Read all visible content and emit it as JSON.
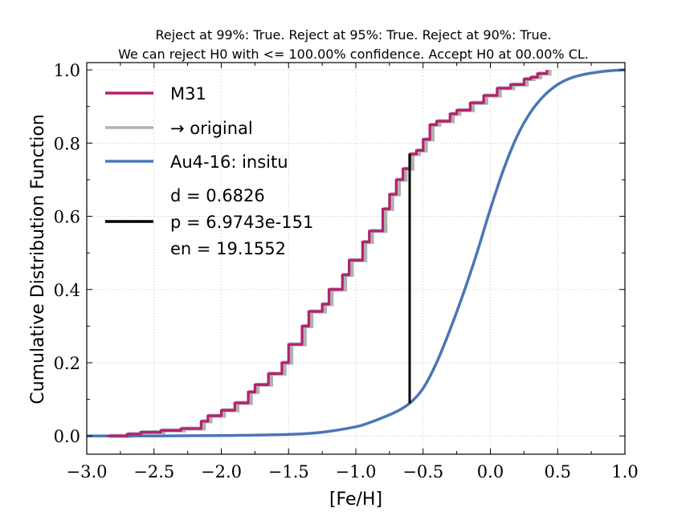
{
  "chart_data": {
    "type": "line",
    "title_lines": [
      "Reject at 99%: True. Reject at 95%: True. Reject at 90%: True.",
      "We can reject H0 with <= 100.00% confidence. Accept H0 at 00.00% CL."
    ],
    "xlabel": "[Fe/H]",
    "ylabel": "Cumulative Distribution Function",
    "xlim": [
      -3.0,
      1.0
    ],
    "ylim": [
      -0.05,
      1.02
    ],
    "xticks": [
      -3.0,
      -2.5,
      -2.0,
      -1.5,
      -1.0,
      -0.5,
      0.0,
      0.5,
      1.0
    ],
    "xtick_labels": [
      "−3.0",
      "−2.5",
      "−2.0",
      "−1.5",
      "−1.0",
      "−0.5",
      "0.0",
      "0.5",
      "1.0"
    ],
    "yticks": [
      0.0,
      0.2,
      0.4,
      0.6,
      0.8,
      1.0
    ],
    "ytick_labels": [
      "0.0",
      "0.2",
      "0.4",
      "0.6",
      "0.8",
      "1.0"
    ],
    "grid": true,
    "legend_position": "upper-left",
    "series": [
      {
        "name": "M31",
        "color": "#b5216f",
        "kind": "step",
        "x": [
          -2.85,
          -2.7,
          -2.6,
          -2.45,
          -2.3,
          -2.15,
          -2.1,
          -2.0,
          -1.9,
          -1.8,
          -1.75,
          -1.65,
          -1.55,
          -1.5,
          -1.4,
          -1.35,
          -1.25,
          -1.2,
          -1.1,
          -1.05,
          -0.95,
          -0.9,
          -0.8,
          -0.75,
          -0.7,
          -0.65,
          -0.6,
          -0.55,
          -0.5,
          -0.45,
          -0.4,
          -0.3,
          -0.25,
          -0.15,
          -0.05,
          0.05,
          0.15,
          0.25,
          0.3,
          0.35,
          0.42
        ],
        "y": [
          0.0,
          0.005,
          0.01,
          0.015,
          0.02,
          0.04,
          0.055,
          0.07,
          0.09,
          0.12,
          0.14,
          0.17,
          0.2,
          0.25,
          0.3,
          0.34,
          0.36,
          0.4,
          0.44,
          0.48,
          0.53,
          0.56,
          0.62,
          0.66,
          0.7,
          0.73,
          0.77,
          0.78,
          0.81,
          0.85,
          0.86,
          0.88,
          0.89,
          0.91,
          0.93,
          0.95,
          0.96,
          0.975,
          0.98,
          0.99,
          1.0
        ]
      },
      {
        "name": "→ original",
        "color": "#b0b0b0",
        "kind": "step",
        "x": [
          -2.85,
          -2.7,
          -2.6,
          -2.45,
          -2.3,
          -2.15,
          -2.1,
          -2.0,
          -1.9,
          -1.8,
          -1.75,
          -1.65,
          -1.55,
          -1.5,
          -1.4,
          -1.35,
          -1.25,
          -1.2,
          -1.1,
          -1.05,
          -0.95,
          -0.9,
          -0.8,
          -0.75,
          -0.7,
          -0.65,
          -0.6,
          -0.55,
          -0.5,
          -0.45,
          -0.4,
          -0.3,
          -0.25,
          -0.15,
          -0.05,
          0.05,
          0.15,
          0.25,
          0.3,
          0.35,
          0.42
        ],
        "y": [
          0.0,
          0.005,
          0.01,
          0.015,
          0.02,
          0.04,
          0.055,
          0.07,
          0.09,
          0.12,
          0.14,
          0.17,
          0.2,
          0.25,
          0.3,
          0.34,
          0.36,
          0.4,
          0.44,
          0.48,
          0.53,
          0.56,
          0.62,
          0.66,
          0.7,
          0.73,
          0.77,
          0.78,
          0.81,
          0.85,
          0.86,
          0.88,
          0.89,
          0.91,
          0.93,
          0.95,
          0.96,
          0.975,
          0.98,
          0.99,
          1.0
        ]
      },
      {
        "name": "Au4-16: insitu",
        "color": "#4a76b8",
        "kind": "line",
        "x": [
          -3.0,
          -2.5,
          -2.0,
          -1.5,
          -1.25,
          -1.0,
          -0.9,
          -0.8,
          -0.7,
          -0.6,
          -0.5,
          -0.4,
          -0.3,
          -0.2,
          -0.1,
          0.0,
          0.1,
          0.2,
          0.3,
          0.4,
          0.5,
          0.6,
          0.7,
          0.8,
          0.9,
          1.0
        ],
        "y": [
          0.0,
          0.0,
          0.001,
          0.004,
          0.01,
          0.025,
          0.036,
          0.05,
          0.066,
          0.089,
          0.13,
          0.2,
          0.29,
          0.39,
          0.5,
          0.62,
          0.73,
          0.82,
          0.885,
          0.93,
          0.96,
          0.978,
          0.988,
          0.994,
          0.998,
          1.0
        ]
      }
    ],
    "ks_statistic": {
      "name": "KS distance",
      "color": "#000000",
      "x": -0.6,
      "y_low": 0.089,
      "y_high": 0.77
    },
    "legend_entries": [
      {
        "label": "M31",
        "color": "#b5216f"
      },
      {
        "label": "→ original",
        "color": "#b0b0b0"
      },
      {
        "label": "Au4-16: insitu",
        "color": "#4a76b8"
      },
      {
        "label": "d = 0.6826",
        "color": ""
      },
      {
        "label": "p = 6.9743e-151",
        "color": "#000000"
      },
      {
        "label": "en = 19.1552",
        "color": ""
      }
    ]
  }
}
